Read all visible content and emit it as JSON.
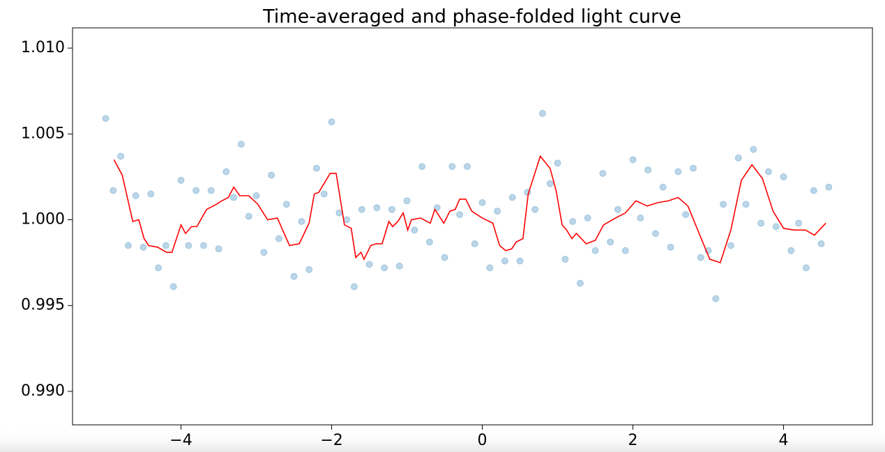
{
  "chart_data": {
    "type": "scatter",
    "title": "Time-averaged and phase-folded light curve",
    "xlim": [
      -5.44,
      5.18
    ],
    "ylim": [
      0.98805,
      1.01118
    ],
    "xticks": [
      {
        "value": -4,
        "label": "−4"
      },
      {
        "value": -2,
        "label": "−2"
      },
      0,
      2,
      4
    ],
    "yticks": [
      {
        "value": 0.99,
        "label": "0.990"
      },
      0.995,
      {
        "value": 1,
        "label": "1.000"
      },
      1.005,
      {
        "value": 1.01,
        "label": "1.010"
      }
    ],
    "grid": false,
    "series": [
      {
        "type": "scatter",
        "color": "#1f77b4",
        "alpha": 0.3,
        "x": [
          -5.0,
          -4.9,
          -4.8,
          -4.7,
          -4.6,
          -4.5,
          -4.4,
          -4.3,
          -4.2,
          -4.1,
          -4.0,
          -3.9,
          -3.8,
          -3.7,
          -3.6,
          -3.5,
          -3.4,
          -3.3,
          -3.2,
          -3.1,
          -3.0,
          -2.9,
          -2.8,
          -2.7,
          -2.6,
          -2.5,
          -2.4,
          -2.3,
          -2.2,
          -2.1,
          -2.0,
          -1.9,
          -1.8,
          -1.7,
          -1.6,
          -1.5,
          -1.4,
          -1.3,
          -1.2,
          -1.1,
          -1.0,
          -0.9,
          -0.8,
          -0.7,
          -0.6,
          -0.5,
          -0.4,
          -0.3,
          -0.2,
          -0.1,
          0.0,
          0.1,
          0.2,
          0.3,
          0.4,
          0.5,
          0.6,
          0.7,
          0.8,
          0.9,
          1.0,
          1.1,
          1.2,
          1.3,
          1.4,
          1.5,
          1.6,
          1.7,
          1.8,
          1.9,
          2.0,
          2.1,
          2.2,
          2.3,
          2.4,
          2.5,
          2.6,
          2.7,
          2.8,
          2.9,
          3.0,
          3.1,
          3.2,
          3.3,
          3.4,
          3.5,
          3.6,
          3.7,
          3.8,
          3.9,
          4.0,
          4.1,
          4.2,
          4.3,
          4.4,
          4.5,
          4.6
        ],
        "values": [
          1.0059,
          1.0017,
          1.0037,
          0.9985,
          1.0014,
          0.9984,
          1.0015,
          0.9972,
          0.9985,
          0.9961,
          1.0023,
          0.9985,
          1.0017,
          0.9985,
          1.0017,
          0.9983,
          1.0028,
          1.0013,
          1.0044,
          1.0002,
          1.0014,
          0.9981,
          1.0026,
          0.9989,
          1.0009,
          0.9967,
          0.9999,
          0.9971,
          1.003,
          1.0015,
          1.0057,
          1.0004,
          1.0,
          0.9961,
          1.0006,
          0.9974,
          1.0007,
          0.9972,
          1.0006,
          0.9973,
          1.0011,
          0.9994,
          1.0031,
          0.9987,
          1.0007,
          0.9978,
          1.0031,
          1.0003,
          1.0031,
          0.9986,
          1.001,
          0.9972,
          1.0005,
          0.9976,
          1.0013,
          0.9976,
          1.0016,
          1.0006,
          1.0062,
          1.0021,
          1.0033,
          0.9977,
          0.9999,
          0.9963,
          1.0001,
          0.9982,
          1.0027,
          0.9987,
          1.0006,
          0.9982,
          1.0035,
          1.0001,
          1.0029,
          0.9992,
          1.0019,
          0.9984,
          1.0028,
          1.0003,
          1.003,
          0.9978,
          0.9982,
          0.9954,
          1.0009,
          0.9985,
          1.0036,
          1.0009,
          1.0041,
          0.9998,
          1.0028,
          0.9996,
          1.0025,
          0.9982,
          0.9998,
          0.9972,
          1.0017,
          0.9986,
          1.0019
        ]
      },
      {
        "type": "line",
        "color": "#ff0000",
        "x": [
          -4.89,
          -4.78,
          -4.64,
          -4.56,
          -4.49,
          -4.43,
          -4.31,
          -4.19,
          -4.12,
          -4.0,
          -3.94,
          -3.86,
          -3.79,
          -3.66,
          -3.53,
          -3.46,
          -3.37,
          -3.3,
          -3.22,
          -3.1,
          -2.98,
          -2.85,
          -2.72,
          -2.56,
          -2.43,
          -2.3,
          -2.23,
          -2.17,
          -2.02,
          -1.94,
          -1.83,
          -1.74,
          -1.68,
          -1.61,
          -1.57,
          -1.48,
          -1.41,
          -1.33,
          -1.24,
          -1.19,
          -1.12,
          -1.05,
          -0.99,
          -0.94,
          -0.82,
          -0.69,
          -0.63,
          -0.51,
          -0.43,
          -0.36,
          -0.3,
          -0.22,
          -0.14,
          0.0,
          0.14,
          0.23,
          0.31,
          0.39,
          0.45,
          0.54,
          0.61,
          0.77,
          0.9,
          0.98,
          1.06,
          1.12,
          1.19,
          1.25,
          1.38,
          1.5,
          1.61,
          1.77,
          1.9,
          2.04,
          2.19,
          2.33,
          2.47,
          2.6,
          2.73,
          3.02,
          3.16,
          3.3,
          3.44,
          3.58,
          3.72,
          3.86,
          4.0,
          4.14,
          4.29,
          4.41,
          4.56
        ],
        "values": [
          1.0035,
          1.0026,
          0.9999,
          1.0,
          0.9989,
          0.9985,
          0.9984,
          0.9981,
          0.9981,
          0.9997,
          0.9992,
          0.9996,
          0.9996,
          1.0006,
          1.0009,
          1.0011,
          1.0013,
          1.0019,
          1.0014,
          1.0014,
          1.0009,
          1.0,
          1.0001,
          0.9985,
          0.9986,
          0.9998,
          1.0015,
          1.0016,
          1.0027,
          1.0027,
          0.9997,
          0.9995,
          0.9978,
          0.9981,
          0.9977,
          0.9985,
          0.9986,
          0.9986,
          0.9999,
          0.9996,
          0.9999,
          1.0004,
          0.9994,
          1.0,
          1.0001,
          0.9998,
          1.0006,
          0.9998,
          1.0005,
          1.0006,
          1.0012,
          1.0012,
          1.0005,
          1.0001,
          0.9998,
          0.9985,
          0.9982,
          0.9983,
          0.9987,
          0.9989,
          1.0015,
          1.0037,
          1.003,
          1.0017,
          0.9997,
          0.9994,
          0.9989,
          0.9992,
          0.9986,
          0.9988,
          0.9997,
          1.0001,
          1.0004,
          1.0011,
          1.0008,
          1.001,
          1.0011,
          1.0013,
          1.0008,
          0.9977,
          0.9975,
          0.9994,
          1.0023,
          1.0032,
          1.0024,
          1.0005,
          0.9995,
          0.9994,
          0.9994,
          0.9991,
          0.9998
        ]
      }
    ]
  }
}
